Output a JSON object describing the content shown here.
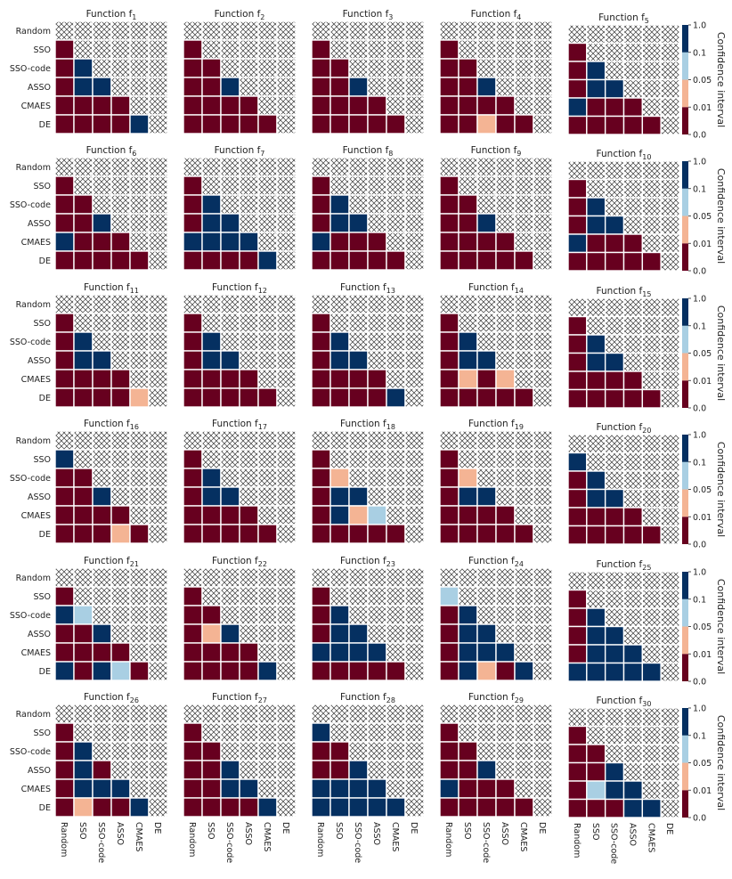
{
  "chart_data": {
    "type": "heatmap",
    "figure_title": "",
    "layout": {
      "rows": 6,
      "cols": 5,
      "mask": "upper triangle incl. diagonal (hatched)"
    },
    "algorithms": [
      "Random",
      "SSO",
      "SSO-code",
      "ASSO",
      "CMAES",
      "DE"
    ],
    "colorbar": {
      "label": "Confidence interval",
      "ticks": [
        "0.0",
        "0.01",
        "0.05",
        "0.1",
        "1.0"
      ],
      "bins": [
        {
          "code": "D",
          "range": "0.0-0.01",
          "color": "#67001f"
        },
        {
          "code": "P",
          "range": "0.01-0.05",
          "color": "#f4b494"
        },
        {
          "code": "L",
          "range": "0.05-0.1",
          "color": "#a9cfe3"
        },
        {
          "code": "N",
          "range": "0.1-1.0",
          "color": "#053061"
        }
      ]
    },
    "panels": [
      {
        "fn": "1",
        "title_base": "Function f",
        "lower": [
          "D",
          "DN",
          "DNN",
          "DDDD",
          "DDDDN"
        ]
      },
      {
        "fn": "2",
        "title_base": "Function f",
        "lower": [
          "D",
          "DD",
          "DDN",
          "DDDD",
          "DDDDD"
        ]
      },
      {
        "fn": "3",
        "title_base": "Function f",
        "lower": [
          "D",
          "DD",
          "DDN",
          "DDDD",
          "DDDDD"
        ]
      },
      {
        "fn": "4",
        "title_base": "Function f",
        "lower": [
          "D",
          "DD",
          "DDN",
          "DDDD",
          "DDPDD"
        ]
      },
      {
        "fn": "5",
        "title_base": "Function f",
        "lower": [
          "D",
          "DN",
          "DNN",
          "NDDD",
          "DDDDD"
        ]
      },
      {
        "fn": "6",
        "title_base": "Function f",
        "lower": [
          "D",
          "DD",
          "DDN",
          "NDDD",
          "DDDDD"
        ]
      },
      {
        "fn": "7",
        "title_base": "Function f",
        "lower": [
          "D",
          "DN",
          "DNN",
          "NNNN",
          "DDDDN"
        ]
      },
      {
        "fn": "8",
        "title_base": "Function f",
        "lower": [
          "D",
          "DN",
          "DNN",
          "NDDD",
          "DDDDD"
        ]
      },
      {
        "fn": "9",
        "title_base": "Function f",
        "lower": [
          "D",
          "DD",
          "DDN",
          "DDDD",
          "DDDDD"
        ]
      },
      {
        "fn": "10",
        "title_base": "Function f",
        "lower": [
          "D",
          "DN",
          "DNN",
          "NDDD",
          "DDDDD"
        ]
      },
      {
        "fn": "11",
        "title_base": "Function f",
        "lower": [
          "D",
          "DN",
          "DNN",
          "DDDD",
          "DDDDP"
        ]
      },
      {
        "fn": "12",
        "title_base": "Function f",
        "lower": [
          "D",
          "DN",
          "DNN",
          "DDDD",
          "DDDDD"
        ]
      },
      {
        "fn": "13",
        "title_base": "Function f",
        "lower": [
          "D",
          "DN",
          "DNN",
          "DDDD",
          "DDDDN"
        ]
      },
      {
        "fn": "14",
        "title_base": "Function f",
        "lower": [
          "D",
          "DN",
          "DNN",
          "DPDP",
          "DDDDD"
        ]
      },
      {
        "fn": "15",
        "title_base": "Function f",
        "lower": [
          "D",
          "DN",
          "DNN",
          "DDDD",
          "DDDDD"
        ]
      },
      {
        "fn": "16",
        "title_base": "Function f",
        "lower": [
          "N",
          "DD",
          "DDN",
          "DDDD",
          "DDDPD"
        ]
      },
      {
        "fn": "17",
        "title_base": "Function f",
        "lower": [
          "D",
          "DN",
          "DNN",
          "DDDD",
          "DDDDD"
        ]
      },
      {
        "fn": "18",
        "title_base": "Function f",
        "lower": [
          "D",
          "DP",
          "DNN",
          "DNPL",
          "DDDDD"
        ]
      },
      {
        "fn": "19",
        "title_base": "Function f",
        "lower": [
          "D",
          "DP",
          "DNN",
          "DDDD",
          "DDDDD"
        ]
      },
      {
        "fn": "20",
        "title_base": "Function f",
        "lower": [
          "N",
          "DN",
          "DNN",
          "DDDD",
          "DDDDD"
        ]
      },
      {
        "fn": "21",
        "title_base": "Function f",
        "lower": [
          "D",
          "NL",
          "DDN",
          "DDDD",
          "NDNLD"
        ]
      },
      {
        "fn": "22",
        "title_base": "Function f",
        "lower": [
          "D",
          "DD",
          "DPN",
          "DDDD",
          "DDDDN"
        ]
      },
      {
        "fn": "23",
        "title_base": "Function f",
        "lower": [
          "D",
          "DN",
          "DNN",
          "NNNN",
          "DDDDD"
        ]
      },
      {
        "fn": "24",
        "title_base": "Function f",
        "lower": [
          "L",
          "DN",
          "DNN",
          "DNNN",
          "DNPDN"
        ]
      },
      {
        "fn": "25",
        "title_base": "Function f",
        "lower": [
          "D",
          "DN",
          "DNN",
          "DNNN",
          "NNNNN"
        ]
      },
      {
        "fn": "26",
        "title_base": "Function f",
        "lower": [
          "D",
          "DN",
          "DND",
          "DNNN",
          "DPDDN"
        ]
      },
      {
        "fn": "27",
        "title_base": "Function f",
        "lower": [
          "D",
          "DD",
          "DDN",
          "DDNN",
          "DDDDN"
        ]
      },
      {
        "fn": "28",
        "title_base": "Function f",
        "lower": [
          "N",
          "DD",
          "DDN",
          "NNNN",
          "NNNNN"
        ]
      },
      {
        "fn": "29",
        "title_base": "Function f",
        "lower": [
          "D",
          "DD",
          "DDN",
          "NDDD",
          "DDDDD"
        ]
      },
      {
        "fn": "30",
        "title_base": "Function f",
        "lower": [
          "D",
          "DD",
          "DDN",
          "DLNN",
          "DDDNN"
        ]
      }
    ]
  }
}
